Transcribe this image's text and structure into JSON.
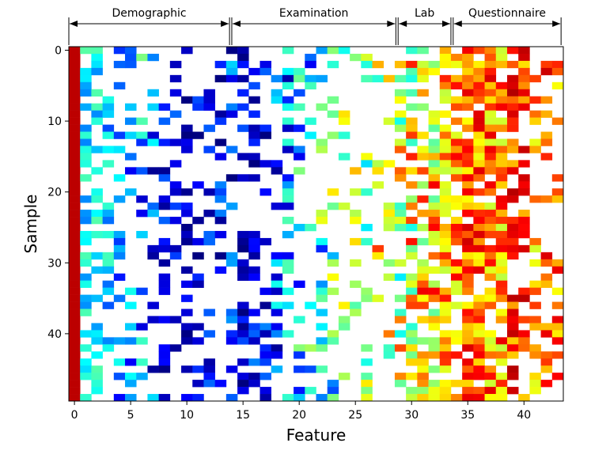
{
  "chart_data": {
    "type": "heatmap",
    "title": "",
    "xlabel": "Feature",
    "ylabel": "Sample",
    "x_range": [
      -0.5,
      43.5
    ],
    "y_range": [
      -0.5,
      49.5
    ],
    "x_ticks": [
      0,
      5,
      10,
      15,
      20,
      25,
      30,
      35,
      40
    ],
    "y_ticks": [
      0,
      10,
      20,
      30,
      40
    ],
    "n_rows": 50,
    "n_cols": 44,
    "colormap": "jet",
    "colormap_stops": [
      "#00007f",
      "#0000ff",
      "#00ffff",
      "#7fff7f",
      "#ffff00",
      "#ff0000",
      "#7f0000"
    ],
    "missing_color": "#ffffff",
    "feature_groups": [
      {
        "name": "Demographic",
        "start": -0.5,
        "end": 13.8
      },
      {
        "name": "Examination",
        "start": 14.0,
        "end": 28.6
      },
      {
        "name": "Lab",
        "start": 28.8,
        "end": 33.5
      },
      {
        "name": "Questionnaire",
        "start": 33.7,
        "end": 43.3
      }
    ],
    "column_profile": {
      "presence_probability": [
        1.0,
        0.5,
        0.5,
        0.3,
        0.28,
        0.28,
        0.28,
        0.28,
        0.3,
        0.3,
        0.3,
        0.3,
        0.3,
        0.3,
        0.3,
        0.5,
        0.4,
        0.4,
        0.4,
        0.35,
        0.3,
        0.3,
        0.3,
        0.28,
        0.28,
        0.25,
        0.22,
        0.25,
        0.3,
        0.55,
        0.65,
        0.7,
        0.72,
        0.8,
        0.75,
        0.85,
        0.85,
        0.85,
        0.85,
        0.55,
        0.5,
        0.35,
        0.3,
        0.25
      ],
      "value_center": [
        0.92,
        0.35,
        0.35,
        0.33,
        0.3,
        0.28,
        0.3,
        0.18,
        0.12,
        0.12,
        0.08,
        0.1,
        0.12,
        0.12,
        0.15,
        0.1,
        0.12,
        0.12,
        0.2,
        0.25,
        0.32,
        0.38,
        0.42,
        0.45,
        0.5,
        0.55,
        0.5,
        0.6,
        0.62,
        0.55,
        0.6,
        0.66,
        0.65,
        0.7,
        0.72,
        0.78,
        0.76,
        0.74,
        0.72,
        0.82,
        0.8,
        0.7,
        0.8,
        0.75
      ],
      "value_spread": [
        0.0,
        0.1,
        0.1,
        0.12,
        0.14,
        0.14,
        0.2,
        0.16,
        0.12,
        0.12,
        0.1,
        0.12,
        0.12,
        0.14,
        0.16,
        0.12,
        0.14,
        0.14,
        0.18,
        0.2,
        0.22,
        0.24,
        0.24,
        0.24,
        0.22,
        0.22,
        0.22,
        0.22,
        0.22,
        0.25,
        0.25,
        0.2,
        0.2,
        0.12,
        0.12,
        0.12,
        0.12,
        0.14,
        0.14,
        0.12,
        0.12,
        0.12,
        0.12,
        0.12
      ]
    }
  }
}
